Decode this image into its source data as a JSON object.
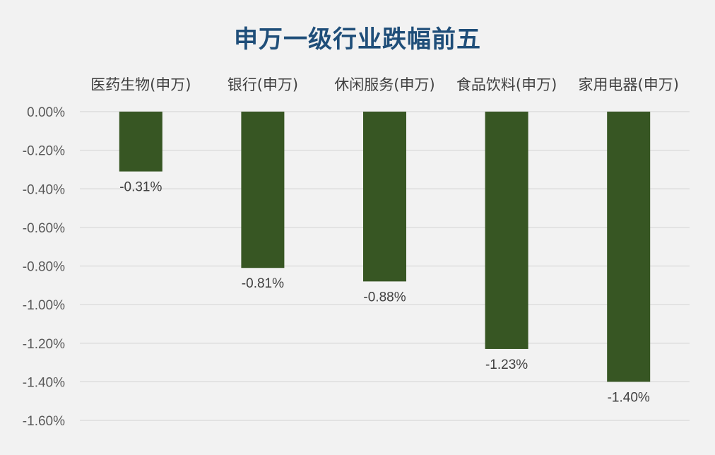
{
  "chart_data": {
    "type": "bar",
    "title": "申万一级行业跌幅前五",
    "categories": [
      "医药生物(申万)",
      "银行(申万)",
      "休闲服务(申万)",
      "食品饮料(申万)",
      "家用电器(申万)"
    ],
    "values": [
      -0.31,
      -0.81,
      -0.88,
      -1.23,
      -1.4
    ],
    "data_labels": [
      "-0.31%",
      "-0.81%",
      "-0.88%",
      "-1.23%",
      "-1.40%"
    ],
    "y_ticks": [
      "0.00%",
      "-0.20%",
      "-0.40%",
      "-0.60%",
      "-0.80%",
      "-1.00%",
      "-1.20%",
      "-1.40%",
      "-1.60%"
    ],
    "ylim": [
      -1.6,
      0
    ],
    "xlabel": "",
    "ylabel": "",
    "grid": true,
    "category_axis_position": "top",
    "bar_color": "#375623",
    "title_color": "#1f4e79"
  }
}
